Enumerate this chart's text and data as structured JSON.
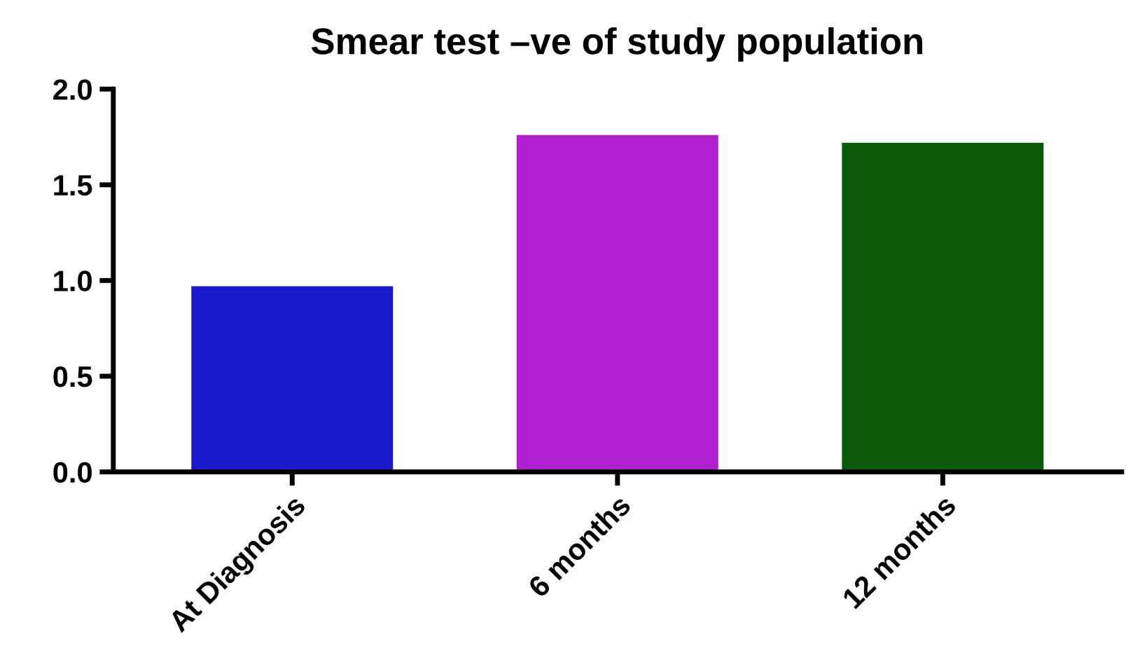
{
  "chart_data": {
    "type": "bar",
    "title": "Smear test –ve of study population",
    "categories": [
      "At Diagnosis",
      "6 months",
      "12 months"
    ],
    "values": [
      0.97,
      1.76,
      1.72
    ],
    "colors": [
      "#1a1acc",
      "#b020d0",
      "#0a5a0a"
    ],
    "ylim": [
      0,
      2.0
    ],
    "yticks": [
      {
        "value": 0,
        "label": "0.0"
      },
      {
        "value": 0.5,
        "label": "0.5"
      },
      {
        "value": 1.0,
        "label": "1.0"
      },
      {
        "value": 1.5,
        "label": "1.5"
      },
      {
        "value": 2.0,
        "label": "2.0"
      }
    ],
    "grid": false
  }
}
